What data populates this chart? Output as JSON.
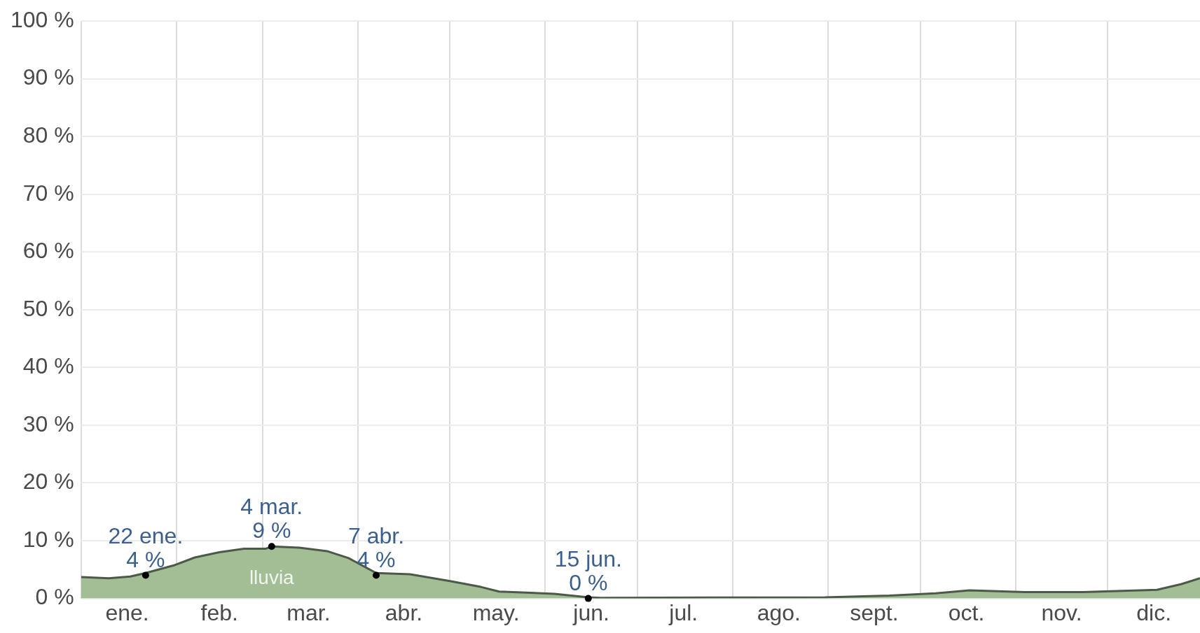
{
  "chart_data": {
    "type": "area",
    "x": [
      "--01-01",
      "--01-10",
      "--01-17",
      "--01-22",
      "--01-31",
      "--02-07",
      "--02-15",
      "--02-23",
      "--03-02",
      "--03-04",
      "--03-13",
      "--03-22",
      "--03-29",
      "--04-07",
      "--04-18",
      "--05-01",
      "--05-11",
      "--05-17",
      "--06-04",
      "--06-15",
      "--06-19",
      "--08-31",
      "--09-21",
      "--10-06",
      "--10-17",
      "--11-04",
      "--11-23",
      "--12-17",
      "--12-25",
      "--12-31"
    ],
    "series": [
      {
        "name": "lluvia",
        "color": "#a3bd95",
        "values": [
          3.7,
          3.5,
          3.8,
          4.4,
          5.7,
          7.1,
          8.0,
          8.6,
          8.6,
          9.0,
          8.8,
          8.2,
          7.0,
          4.4,
          4.2,
          3.0,
          2.0,
          1.2,
          0.8,
          0.2,
          0.1,
          0.2,
          0.5,
          0.9,
          1.4,
          1.1,
          1.1,
          1.5,
          2.5,
          3.5
        ]
      }
    ],
    "xlim": [
      "--01-01",
      "--12-31"
    ],
    "xticks": [
      {
        "value": "--01-01",
        "label": null
      },
      {
        "value": "--01-16",
        "label": "ene."
      },
      {
        "value": "--02-01",
        "label": null
      },
      {
        "value": "--02-15",
        "label": "feb."
      },
      {
        "value": "--03-01",
        "label": null
      },
      {
        "value": "--03-16",
        "label": "mar."
      },
      {
        "value": "--04-01",
        "label": null
      },
      {
        "value": "--04-16",
        "label": "abr."
      },
      {
        "value": "--05-01",
        "label": null
      },
      {
        "value": "--05-16",
        "label": "may."
      },
      {
        "value": "--06-01",
        "label": null
      },
      {
        "value": "--06-16",
        "label": "jun."
      },
      {
        "value": "--07-01",
        "label": null
      },
      {
        "value": "--07-16",
        "label": "jul."
      },
      {
        "value": "--08-01",
        "label": null
      },
      {
        "value": "--08-16",
        "label": "ago."
      },
      {
        "value": "--09-01",
        "label": null
      },
      {
        "value": "--09-16",
        "label": "sept."
      },
      {
        "value": "--10-01",
        "label": null
      },
      {
        "value": "--10-16",
        "label": "oct."
      },
      {
        "value": "--11-01",
        "label": null
      },
      {
        "value": "--11-16",
        "label": "nov."
      },
      {
        "value": "--12-01",
        "label": null
      },
      {
        "value": "--12-16",
        "label": "dic."
      }
    ],
    "ylim": [
      0,
      100
    ],
    "yticks": [
      {
        "value": 0,
        "label": "0 %"
      },
      {
        "value": 10,
        "label": "10 %"
      },
      {
        "value": 20,
        "label": "20 %"
      },
      {
        "value": 30,
        "label": "30 %"
      },
      {
        "value": 40,
        "label": "40 %"
      },
      {
        "value": 50,
        "label": "50 %"
      },
      {
        "value": 60,
        "label": "60 %"
      },
      {
        "value": 70,
        "label": "70 %"
      },
      {
        "value": 80,
        "label": "80 %"
      },
      {
        "value": 90,
        "label": "90 %"
      },
      {
        "value": 100,
        "label": "100 %"
      }
    ],
    "grid": true,
    "legend": false,
    "annotations": [
      {
        "text": "22 ene.\n4 %",
        "x": "--01-22",
        "y": 4
      },
      {
        "text": "4 mar.\n9 %",
        "x": "--03-04",
        "y": 9
      },
      {
        "text": "7 abr.\n4 %",
        "x": "--04-07",
        "y": 4
      },
      {
        "text": "15 jun.\n0 %",
        "x": "--06-15",
        "y": 0
      }
    ]
  }
}
